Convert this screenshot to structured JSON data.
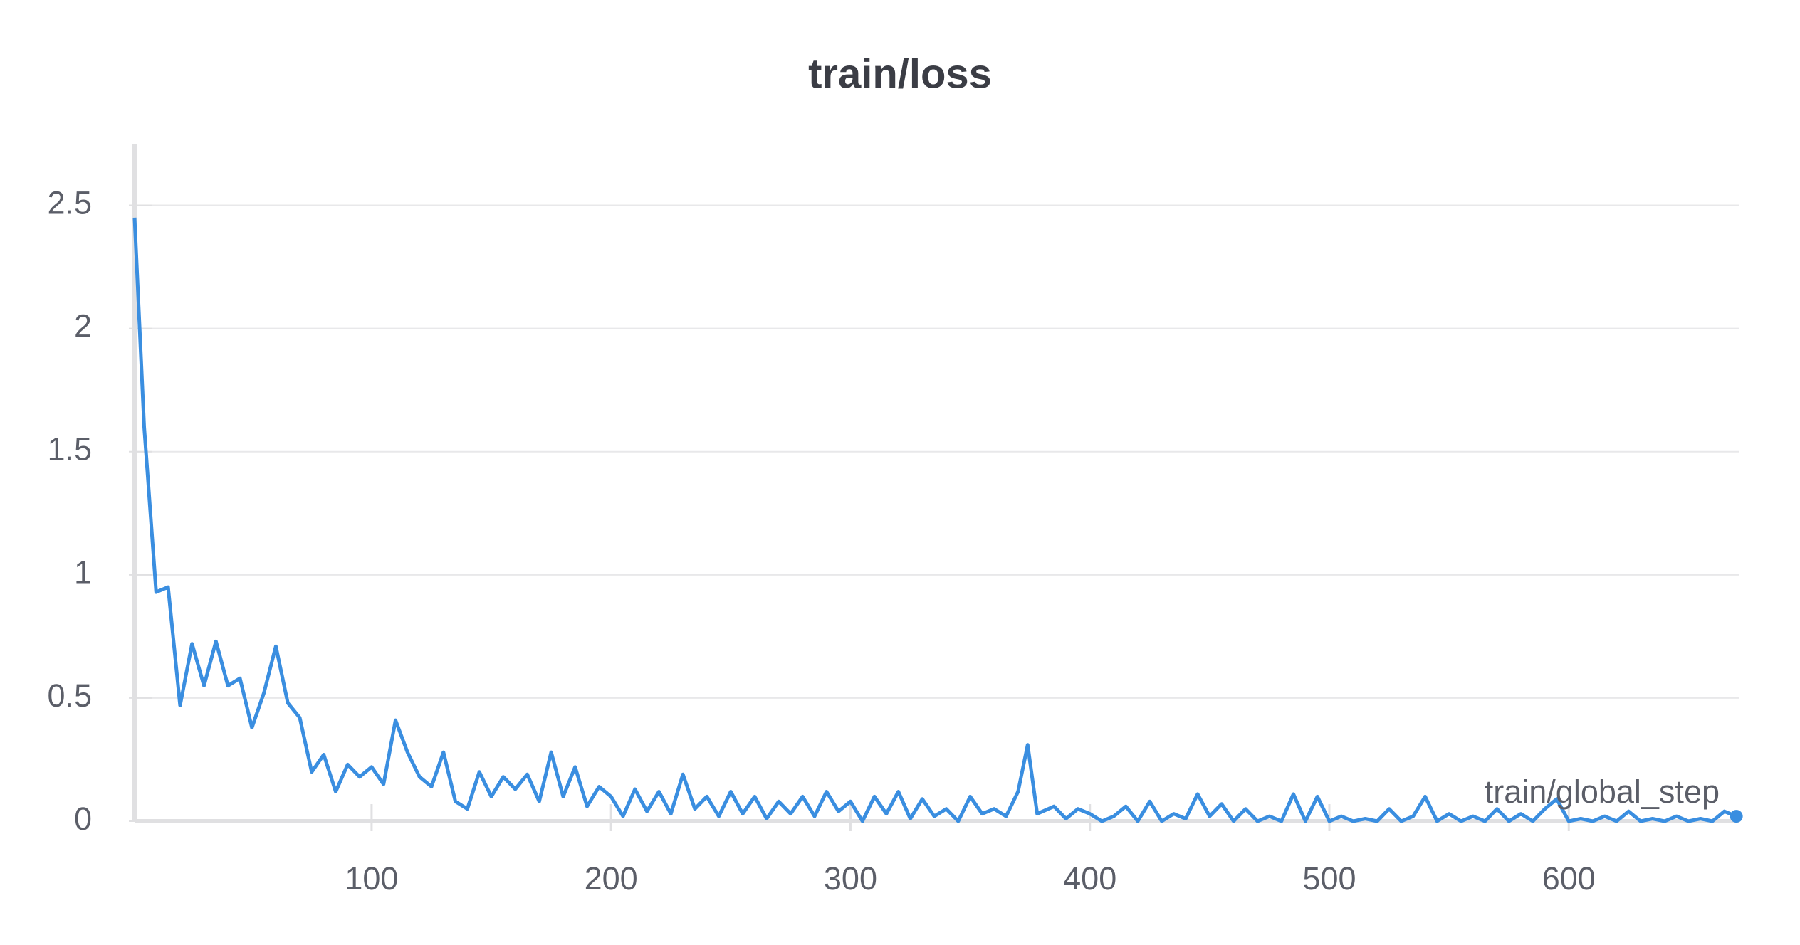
{
  "chart_data": {
    "type": "line",
    "title": "train/loss",
    "x_label": "train/global_step",
    "x": [
      1,
      5,
      10,
      15,
      20,
      25,
      30,
      35,
      40,
      45,
      50,
      55,
      60,
      65,
      70,
      75,
      80,
      85,
      90,
      95,
      100,
      105,
      110,
      115,
      120,
      125,
      130,
      135,
      140,
      145,
      150,
      155,
      160,
      165,
      170,
      175,
      180,
      185,
      190,
      195,
      200,
      205,
      210,
      215,
      220,
      225,
      230,
      235,
      240,
      245,
      250,
      255,
      260,
      265,
      270,
      275,
      280,
      285,
      290,
      295,
      300,
      305,
      310,
      315,
      320,
      325,
      330,
      335,
      340,
      345,
      350,
      355,
      360,
      365,
      370,
      374,
      378,
      385,
      390,
      395,
      400,
      405,
      410,
      415,
      420,
      425,
      430,
      435,
      440,
      445,
      450,
      455,
      460,
      465,
      470,
      475,
      480,
      485,
      490,
      495,
      500,
      505,
      510,
      515,
      520,
      525,
      530,
      535,
      540,
      545,
      550,
      555,
      560,
      565,
      570,
      575,
      580,
      585,
      590,
      595,
      600,
      605,
      610,
      615,
      620,
      625,
      630,
      635,
      640,
      645,
      650,
      655,
      660,
      665,
      670
    ],
    "series": [
      {
        "name": "train/loss",
        "color": "#3a8ee0",
        "values": [
          2.45,
          1.6,
          0.93,
          0.95,
          0.47,
          0.72,
          0.55,
          0.73,
          0.55,
          0.58,
          0.38,
          0.52,
          0.71,
          0.48,
          0.42,
          0.2,
          0.27,
          0.12,
          0.23,
          0.18,
          0.22,
          0.15,
          0.41,
          0.28,
          0.18,
          0.14,
          0.28,
          0.08,
          0.05,
          0.2,
          0.1,
          0.18,
          0.13,
          0.19,
          0.08,
          0.28,
          0.1,
          0.22,
          0.06,
          0.14,
          0.1,
          0.02,
          0.13,
          0.04,
          0.12,
          0.03,
          0.19,
          0.05,
          0.1,
          0.02,
          0.12,
          0.03,
          0.1,
          0.01,
          0.08,
          0.03,
          0.1,
          0.02,
          0.12,
          0.04,
          0.08,
          0.0,
          0.1,
          0.03,
          0.12,
          0.01,
          0.09,
          0.02,
          0.05,
          0.0,
          0.1,
          0.03,
          0.05,
          0.02,
          0.12,
          0.31,
          0.03,
          0.06,
          0.01,
          0.05,
          0.03,
          0.0,
          0.02,
          0.06,
          0.0,
          0.08,
          0.0,
          0.03,
          0.01,
          0.11,
          0.02,
          0.07,
          0.0,
          0.05,
          0.0,
          0.02,
          0.0,
          0.11,
          0.0,
          0.1,
          0.0,
          0.02,
          0.0,
          0.01,
          0.0,
          0.05,
          0.0,
          0.02,
          0.1,
          0.0,
          0.03,
          0.0,
          0.02,
          0.0,
          0.05,
          0.0,
          0.03,
          0.0,
          0.05,
          0.09,
          0.0,
          0.01,
          0.0,
          0.02,
          0.0,
          0.04,
          0.0,
          0.01,
          0.0,
          0.02,
          0.0,
          0.01,
          0.0,
          0.04,
          0.02
        ]
      }
    ],
    "xlim": [
      1,
      671
    ],
    "ylim": [
      0,
      2.75
    ],
    "xticks": [
      100,
      200,
      300,
      400,
      500,
      600
    ],
    "yticks": [
      0,
      0.5,
      1,
      1.5,
      2,
      2.5
    ],
    "grid": true
  }
}
